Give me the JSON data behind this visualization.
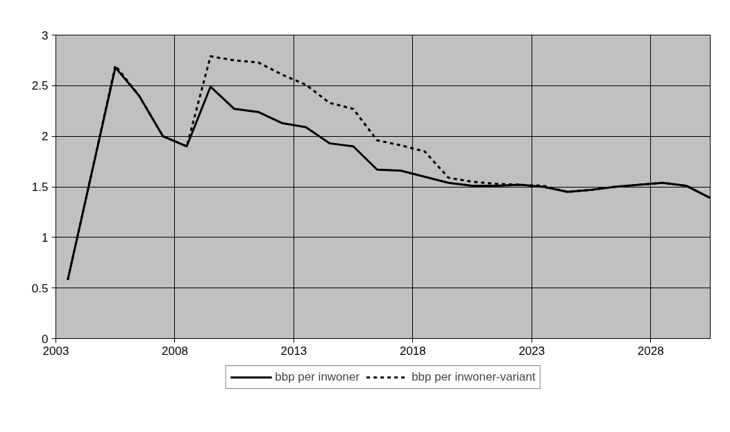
{
  "chart_data": {
    "type": "line",
    "x": [
      2003.5,
      2004.5,
      2005.5,
      2006.5,
      2007.5,
      2008.5,
      2009.5,
      2010.5,
      2011.5,
      2012.5,
      2013.5,
      2014.5,
      2015.5,
      2016.5,
      2017.5,
      2018.5,
      2019.5,
      2020.5,
      2021.5,
      2022.5,
      2023.5,
      2024.5,
      2025.5,
      2026.5,
      2027.5,
      2028.5,
      2029.5,
      2030.5
    ],
    "series": [
      {
        "name": "bbp per inwoner",
        "color": "#000000",
        "line_style": "solid",
        "values": [
          0.58,
          1.63,
          2.68,
          2.4,
          2.0,
          1.9,
          2.49,
          2.27,
          2.24,
          2.13,
          2.09,
          1.93,
          1.9,
          1.67,
          1.66,
          1.6,
          1.54,
          1.51,
          1.51,
          1.52,
          1.5,
          1.45,
          1.47,
          1.5,
          1.52,
          1.54,
          1.51,
          1.39
        ]
      },
      {
        "name": "bbp per inwoner-variant",
        "color": "#000000",
        "line_style": "dashed",
        "values": [
          0.58,
          1.63,
          2.7,
          2.4,
          2.0,
          1.9,
          2.79,
          2.75,
          2.73,
          2.61,
          2.51,
          2.33,
          2.27,
          1.96,
          1.91,
          1.85,
          1.59,
          1.55,
          1.53,
          1.52,
          1.51,
          1.45,
          1.47,
          1.5,
          1.52,
          1.54,
          1.51,
          1.39
        ]
      }
    ],
    "xlim": [
      2003,
      2030.5
    ],
    "xticks": [
      2003,
      2008,
      2013,
      2018,
      2023,
      2028
    ],
    "ylim": [
      0,
      3
    ],
    "yticks": [
      0,
      0.5,
      1,
      1.5,
      2,
      2.5,
      3
    ],
    "grid": true,
    "legend": "bottom",
    "marker": "none"
  }
}
